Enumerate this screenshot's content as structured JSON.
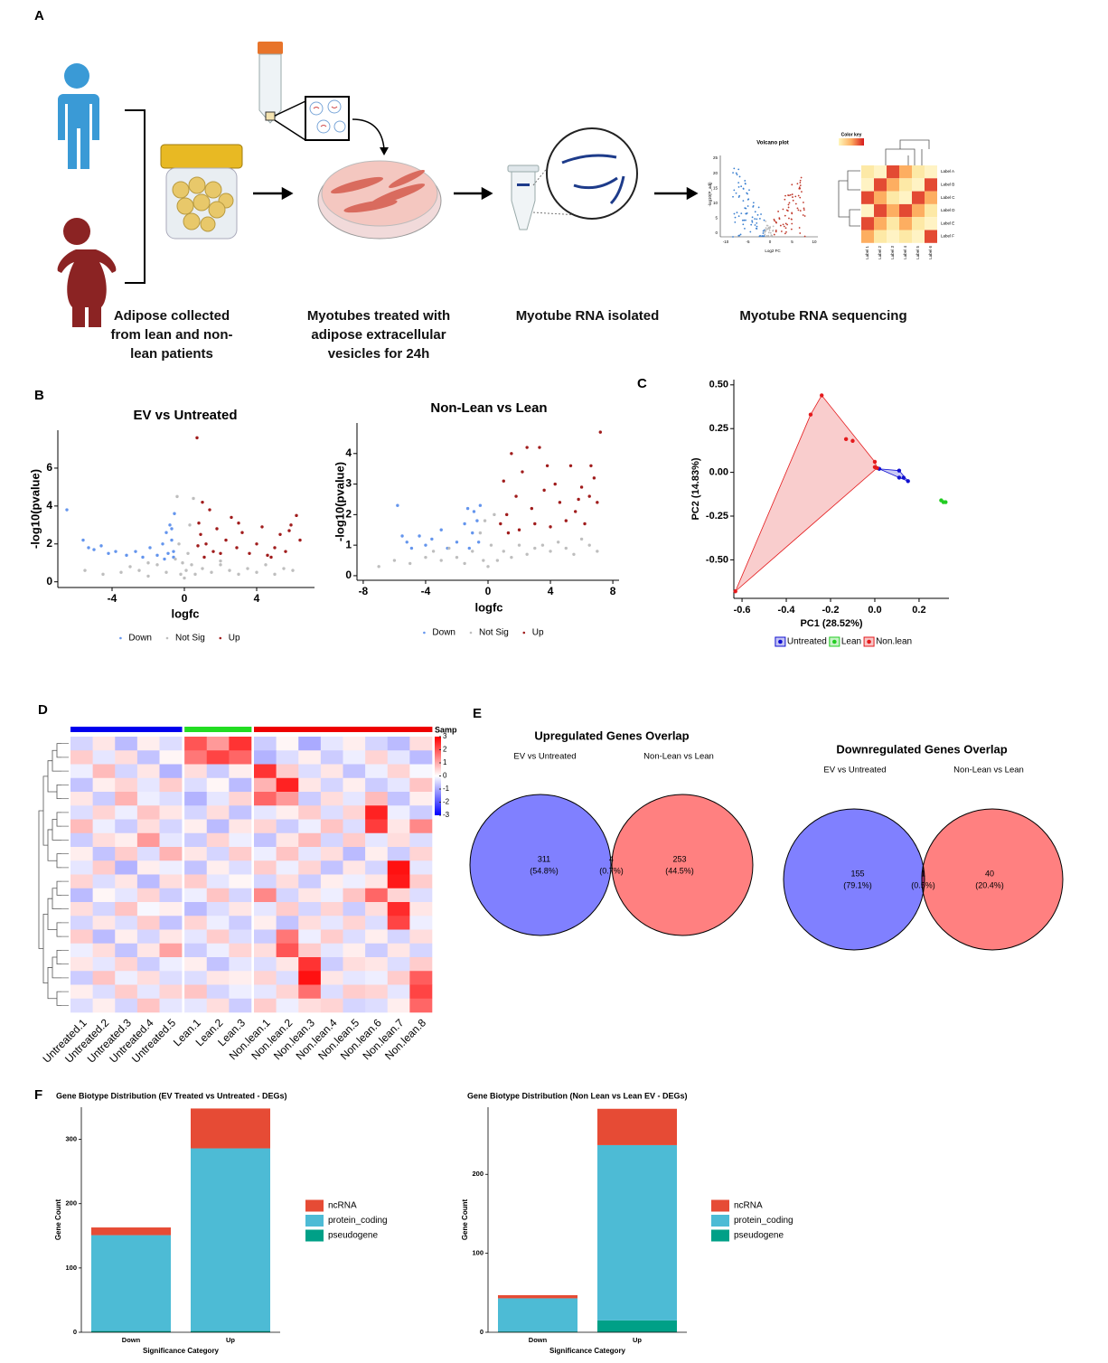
{
  "panel_labels": [
    "A",
    "B",
    "C",
    "D",
    "E",
    "F"
  ],
  "schematic": {
    "steps": [
      [
        "Adipose collected",
        "from lean and non-",
        "lean patients"
      ],
      [
        "Myotubes treated with",
        "adipose extracellular",
        "vesicles for 24h"
      ],
      [
        "Myotube RNA isolated"
      ],
      [
        "Myotube RNA sequencing"
      ]
    ],
    "volcano_title": "Volcano plot",
    "color_key": "Color key",
    "x_ticks": [
      "-10",
      "-5",
      "0",
      "5",
      "10"
    ],
    "y_ticks": [
      "0",
      "5",
      "10",
      "15",
      "20",
      "25"
    ],
    "x_label": "Log2 FC",
    "y_label": "-log10(P_adj)",
    "row_labels": [
      "Label A",
      "Label B",
      "Label C",
      "Label D",
      "Label E",
      "Label F"
    ],
    "col_labels": [
      "Label 1",
      "Label 2",
      "Label 3",
      "Label 4",
      "Label 5",
      "Label 6"
    ]
  },
  "chart_data": [
    {
      "type": "scatter",
      "title": "EV vs Untreated",
      "x_label": "logfc",
      "y_label": "-log10(pvalue)",
      "xlim": [
        -7,
        7.2
      ],
      "ylim": [
        -0.3,
        8
      ],
      "xticks": [
        -4,
        0,
        4
      ],
      "yticks": [
        0,
        2,
        4,
        6
      ],
      "series": [
        {
          "name": "Down",
          "color": "#6495ed",
          "x": [
            -6.5,
            -5.6,
            -5.3,
            -5.0,
            -4.6,
            -4.2,
            -3.8,
            -3.2,
            -2.7,
            -2.3,
            -1.9,
            -1.5,
            -1.2,
            -1.0,
            -0.9,
            -0.8,
            -0.7,
            -0.6,
            -0.55,
            -0.7,
            -1.1,
            -0.6
          ],
          "values": [
            3.8,
            2.2,
            1.8,
            1.7,
            1.9,
            1.5,
            1.6,
            1.4,
            1.6,
            1.3,
            1.8,
            1.4,
            2.0,
            2.6,
            1.5,
            3.0,
            2.2,
            1.6,
            3.6,
            2.8,
            1.2,
            1.3
          ]
        },
        {
          "name": "Not Sig",
          "color": "#bebebe",
          "x": [
            -5.5,
            -4.5,
            -3.5,
            -3,
            -2.5,
            -2,
            -1.5,
            -1,
            -0.5,
            -0.3,
            -0.2,
            -0.1,
            0,
            0.1,
            0.2,
            0.3,
            0.4,
            0.6,
            1,
            1.5,
            2,
            2.5,
            3,
            3.5,
            4,
            4.5,
            5,
            5.5,
            6,
            -0.4,
            0.5,
            -2,
            2
          ],
          "values": [
            0.6,
            0.4,
            0.5,
            0.8,
            0.6,
            0.3,
            0.9,
            0.5,
            1.2,
            2.0,
            0.4,
            1.0,
            0.2,
            0.6,
            1.5,
            3.0,
            0.9,
            0.4,
            0.7,
            0.5,
            0.9,
            0.6,
            0.4,
            0.7,
            0.5,
            0.9,
            0.4,
            0.7,
            0.6,
            4.5,
            4.4,
            1.0,
            1.1
          ]
        },
        {
          "name": "Up",
          "color": "#a01c1c",
          "x": [
            0.7,
            0.8,
            0.9,
            1.0,
            1.2,
            1.4,
            1.6,
            1.8,
            2.0,
            2.3,
            2.6,
            2.9,
            3.2,
            3.6,
            4.0,
            4.3,
            4.6,
            5.0,
            5.3,
            5.6,
            5.9,
            6.2,
            6.4,
            0.75,
            1.1,
            3.0,
            4.8,
            5.8
          ],
          "values": [
            7.6,
            3.1,
            2.5,
            4.2,
            2.0,
            3.8,
            1.6,
            2.8,
            1.5,
            2.2,
            3.4,
            1.8,
            2.6,
            1.5,
            2.0,
            2.9,
            1.4,
            1.8,
            2.5,
            1.6,
            3.0,
            3.5,
            2.2,
            1.9,
            1.3,
            3.1,
            1.3,
            2.7
          ]
        }
      ]
    },
    {
      "type": "scatter",
      "title": "Non-Lean vs Lean",
      "x_label": "logfc",
      "y_label": "-log10(pvalue)",
      "xlim": [
        -8.4,
        8.4
      ],
      "ylim": [
        -0.15,
        5
      ],
      "xticks": [
        -8,
        -4,
        0,
        4,
        8
      ],
      "yticks": [
        0,
        1,
        2,
        3,
        4
      ],
      "series": [
        {
          "name": "Down",
          "color": "#6495ed",
          "x": [
            -5.8,
            -5.5,
            -5.2,
            -4.9,
            -4.4,
            -4.0,
            -3.6,
            -3.0,
            -2.6,
            -2.0,
            -1.5,
            -1.3,
            -1.0,
            -0.9,
            -0.7,
            -0.6,
            -0.5,
            -1.2
          ],
          "values": [
            2.3,
            1.3,
            1.1,
            0.9,
            1.3,
            1.0,
            1.2,
            1.5,
            0.9,
            1.1,
            1.7,
            2.2,
            1.4,
            2.1,
            1.8,
            1.1,
            2.3,
            0.9
          ]
        },
        {
          "name": "Not Sig",
          "color": "#bebebe",
          "x": [
            -7,
            -6,
            -5,
            -4,
            -3.5,
            -3,
            -2.5,
            -2,
            -1.5,
            -1,
            -0.5,
            -0.3,
            -0.2,
            0,
            0.2,
            0.4,
            0.6,
            1,
            1.5,
            2,
            2.5,
            3,
            3.5,
            4,
            4.5,
            5,
            5.5,
            6,
            6.5,
            7
          ],
          "values": [
            0.3,
            0.5,
            0.4,
            0.6,
            0.8,
            0.5,
            0.9,
            0.6,
            0.4,
            0.8,
            1.4,
            0.5,
            1.8,
            0.3,
            1.0,
            2.0,
            0.5,
            0.8,
            0.6,
            1.0,
            0.7,
            0.9,
            1.0,
            0.8,
            1.1,
            0.9,
            0.7,
            1.2,
            1.0,
            0.8
          ]
        },
        {
          "name": "Up",
          "color": "#a01c1c",
          "x": [
            0.8,
            1.0,
            1.2,
            1.5,
            1.8,
            2.0,
            2.2,
            2.5,
            2.8,
            3.0,
            3.3,
            3.6,
            4.0,
            4.3,
            4.6,
            5.0,
            5.3,
            5.6,
            6.0,
            6.2,
            6.5,
            6.8,
            7.0,
            7.2,
            6.6,
            5.8,
            3.8,
            1.3
          ],
          "values": [
            1.7,
            3.1,
            2.0,
            4.0,
            2.6,
            1.5,
            3.4,
            4.2,
            2.2,
            1.7,
            4.2,
            2.8,
            1.6,
            3.0,
            2.4,
            1.8,
            3.6,
            2.1,
            2.9,
            1.7,
            2.6,
            3.2,
            2.4,
            4.7,
            3.6,
            2.5,
            3.6,
            1.4
          ]
        }
      ]
    },
    {
      "type": "scatter",
      "hull": true,
      "x_label": "PC1 (28.52%)",
      "y_label": "PC2 (14.83%)",
      "xlim": [
        -0.637,
        0.335
      ],
      "ylim": [
        -0.72,
        0.53
      ],
      "xticks": [
        -0.6,
        -0.4,
        -0.2,
        {
          "value": 0,
          "label": "0.0"
        },
        0.2
      ],
      "yticks": [
        {
          "value": 0.5,
          "label": "0.50"
        },
        0.25,
        {
          "value": 0,
          "label": "0.00"
        },
        -0.25,
        {
          "value": -0.5,
          "label": "-0.50"
        }
      ],
      "series": [
        {
          "name": "Untreated",
          "color": "#1010d0",
          "x": [
            0.02,
            0.11,
            0.11,
            0.15,
            0.13
          ],
          "values": [
            0.02,
            0.01,
            -0.03,
            -0.05,
            -0.03
          ]
        },
        {
          "name": "Lean",
          "color": "#22cc22",
          "x": [
            0.3,
            0.31,
            0.32
          ],
          "values": [
            -0.16,
            -0.17,
            -0.17
          ]
        },
        {
          "name": "Non.lean",
          "color": "#e41a1c",
          "x": [
            -0.24,
            -0.29,
            -0.13,
            -0.1,
            0.0,
            0.0,
            0.01,
            -0.63
          ],
          "values": [
            0.44,
            0.33,
            0.19,
            0.18,
            0.06,
            0.03,
            0.025,
            -0.68
          ]
        }
      ]
    },
    {
      "type": "heatmap",
      "columns": [
        "Untreated.1",
        "Untreated.2",
        "Untreated.3",
        "Untreated.4",
        "Untreated.5",
        "Lean.1",
        "Lean.2",
        "Lean.3",
        "Non.lean.1",
        "Non.lean.2",
        "Non.lean.3",
        "Non.lean.4",
        "Non.lean.5",
        "Non.lean.6",
        "Non.lean.7",
        "Non.lean.8"
      ],
      "column_colors": [
        "#0000ee",
        "#0000ee",
        "#0000ee",
        "#0000ee",
        "#0000ee",
        "#22dd22",
        "#22dd22",
        "#22dd22",
        "#ee0000",
        "#ee0000",
        "#ee0000",
        "#ee0000",
        "#ee0000",
        "#ee0000",
        "#ee0000",
        "#ee0000"
      ],
      "colorbar_title": "Samp",
      "zlim": [
        -3,
        3
      ],
      "colorbar_ticks": [
        3,
        2,
        1,
        0,
        -1,
        -2,
        -3
      ],
      "colors": [
        "#0000ff",
        "#ffffff",
        "#ff0000"
      ],
      "values": [
        [
          -0.5,
          0.3,
          -0.8,
          0.2,
          -0.4,
          2.0,
          1.2,
          2.4,
          -0.6,
          0.1,
          -1.0,
          -0.3,
          0.2,
          -0.5,
          -0.8,
          0.4
        ],
        [
          0.6,
          -0.3,
          0.4,
          -0.7,
          0.1,
          1.6,
          2.2,
          1.8,
          -0.9,
          -0.4,
          0.2,
          -0.6,
          -0.2,
          0.5,
          -0.3,
          -0.8
        ],
        [
          -0.2,
          0.8,
          -0.5,
          0.3,
          -0.9,
          0.4,
          -0.6,
          0.2,
          2.4,
          0.6,
          -0.4,
          0.3,
          -0.7,
          -0.2,
          0.5,
          -0.1
        ],
        [
          -0.7,
          0.2,
          0.5,
          -0.3,
          0.6,
          -0.4,
          0.1,
          -0.8,
          0.9,
          2.6,
          0.3,
          -0.5,
          0.2,
          -0.6,
          -0.3,
          0.7
        ],
        [
          0.3,
          -0.6,
          0.9,
          -0.2,
          -0.4,
          -0.9,
          -0.3,
          0.5,
          1.8,
          1.2,
          -0.6,
          0.4,
          -0.3,
          0.8,
          -0.7,
          0.2
        ],
        [
          -0.4,
          0.5,
          -0.2,
          0.7,
          0.3,
          -0.5,
          0.4,
          -0.7,
          -0.3,
          0.2,
          0.6,
          -0.4,
          0.5,
          2.6,
          -0.2,
          -0.6
        ],
        [
          0.8,
          -0.2,
          -0.6,
          0.4,
          -0.5,
          0.2,
          -0.8,
          0.3,
          0.5,
          -0.6,
          -0.2,
          0.7,
          -0.4,
          2.3,
          0.3,
          1.4
        ],
        [
          -0.6,
          0.4,
          0.2,
          1.2,
          -0.3,
          -0.6,
          0.5,
          -0.2,
          -0.7,
          0.3,
          0.8,
          -0.5,
          0.6,
          -0.3,
          0.4,
          -0.4
        ],
        [
          0.2,
          -0.7,
          0.6,
          -0.4,
          0.9,
          0.3,
          -0.5,
          0.6,
          -0.2,
          0.7,
          -0.3,
          0.4,
          -0.8,
          0.2,
          -0.6,
          0.5
        ],
        [
          -0.3,
          0.6,
          -0.9,
          0.2,
          -0.2,
          -0.7,
          0.2,
          -0.4,
          0.6,
          -0.2,
          0.5,
          -0.7,
          0.3,
          -0.5,
          2.8,
          -0.3
        ],
        [
          0.5,
          -0.4,
          0.3,
          -0.8,
          0.4,
          0.6,
          -0.3,
          0.1,
          -0.5,
          0.4,
          -0.6,
          0.2,
          -0.2,
          0.3,
          2.7,
          0.6
        ],
        [
          -0.8,
          0.1,
          -0.3,
          0.5,
          -0.6,
          -0.2,
          0.7,
          -0.5,
          1.4,
          -0.5,
          0.3,
          -0.2,
          0.7,
          1.8,
          0.5,
          -0.4
        ],
        [
          0.4,
          -0.5,
          0.7,
          -0.1,
          0.2,
          -0.8,
          -0.4,
          0.3,
          -0.3,
          0.6,
          -0.5,
          0.5,
          -0.6,
          0.4,
          2.5,
          0.3
        ],
        [
          -0.5,
          0.3,
          -0.4,
          0.6,
          -0.7,
          0.5,
          -0.2,
          -0.6,
          0.2,
          -0.7,
          0.4,
          -0.3,
          0.5,
          -0.4,
          2.2,
          -0.2
        ],
        [
          0.6,
          -0.8,
          0.2,
          -0.5,
          0.3,
          -0.3,
          0.6,
          -0.4,
          -0.6,
          1.6,
          -0.2,
          0.6,
          -0.4,
          0.2,
          -0.5,
          0.4
        ],
        [
          -0.2,
          0.4,
          -0.7,
          0.3,
          1.1,
          -0.6,
          -0.2,
          0.5,
          0.4,
          2.0,
          0.6,
          -0.3,
          0.2,
          -0.6,
          0.3,
          -0.5
        ],
        [
          0.3,
          -0.3,
          0.5,
          -0.6,
          -0.2,
          0.2,
          -0.7,
          -0.3,
          -0.4,
          0.3,
          2.4,
          -0.6,
          0.4,
          0.3,
          -0.4,
          0.6
        ],
        [
          -0.6,
          0.7,
          -0.2,
          0.4,
          -0.4,
          -0.4,
          0.3,
          0.2,
          0.5,
          -0.4,
          2.8,
          0.3,
          -0.3,
          -0.2,
          0.6,
          1.9
        ],
        [
          0.2,
          -0.4,
          0.6,
          -0.3,
          0.5,
          0.7,
          -0.5,
          -0.2,
          -0.3,
          0.5,
          1.7,
          -0.4,
          0.6,
          0.5,
          -0.3,
          2.2
        ],
        [
          -0.4,
          0.2,
          -0.5,
          0.7,
          -0.3,
          -0.3,
          0.4,
          -0.6,
          0.6,
          -0.2,
          0.4,
          0.5,
          -0.5,
          -0.4,
          0.2,
          1.8
        ]
      ]
    },
    {
      "type": "venn",
      "title": "Upregulated Genes Overlap",
      "sets": [
        "EV vs Untreated",
        "Non-Lean vs Lean"
      ],
      "colors": [
        "#8080ff",
        "#ff8080"
      ],
      "overlap_color": "#a8336f",
      "values": [
        311,
        4,
        253
      ],
      "percentages": [
        54.8,
        0.7,
        44.5
      ],
      "percentage_labels": [
        "(54.8%)",
        "(0.7%)",
        "(44.5%)"
      ]
    },
    {
      "type": "venn",
      "title": "Downregulated Genes Overlap",
      "sets": [
        "EV vs Untreated",
        "Non-Lean vs Lean"
      ],
      "colors": [
        "#8080ff",
        "#ff8080"
      ],
      "overlap_color": "#a8336f",
      "values": [
        155,
        1,
        40
      ],
      "percentages": [
        79.1,
        0.5,
        20.4
      ],
      "percentage_labels": [
        "(79.1%)",
        "(0.5%)",
        "(20.4%)"
      ]
    },
    {
      "type": "stacked_bar",
      "title": "Gene Biotype Distribution (EV Treated vs Untreated - DEGs)",
      "x_label": "Significance Category",
      "y_label": "Gene Count",
      "categories": [
        "Down",
        "Up"
      ],
      "ylim": [
        0,
        350
      ],
      "yticks": [
        0,
        100,
        200,
        300
      ],
      "series": [
        {
          "name": "ncRNA",
          "color": "#e64b35",
          "values": [
            12,
            62
          ]
        },
        {
          "name": "protein_coding",
          "color": "#4dbbd5",
          "values": [
            149,
            284
          ]
        },
        {
          "name": "pseudogene",
          "color": "#00a087",
          "values": [
            2,
            2
          ]
        }
      ]
    },
    {
      "type": "stacked_bar",
      "title": "Gene Biotype Distribution (Non Lean vs Lean EV - DEGs)",
      "x_label": "Significance Category",
      "y_label": "Gene Count",
      "categories": [
        "Down",
        "Up"
      ],
      "ylim": [
        0,
        285
      ],
      "yticks": [
        0,
        100,
        200
      ],
      "series": [
        {
          "name": "ncRNA",
          "color": "#e64b35",
          "values": [
            4,
            46
          ]
        },
        {
          "name": "protein_coding",
          "color": "#4dbbd5",
          "values": [
            42,
            222
          ]
        },
        {
          "name": "pseudogene",
          "color": "#00a087",
          "values": [
            1,
            15
          ]
        }
      ]
    }
  ]
}
